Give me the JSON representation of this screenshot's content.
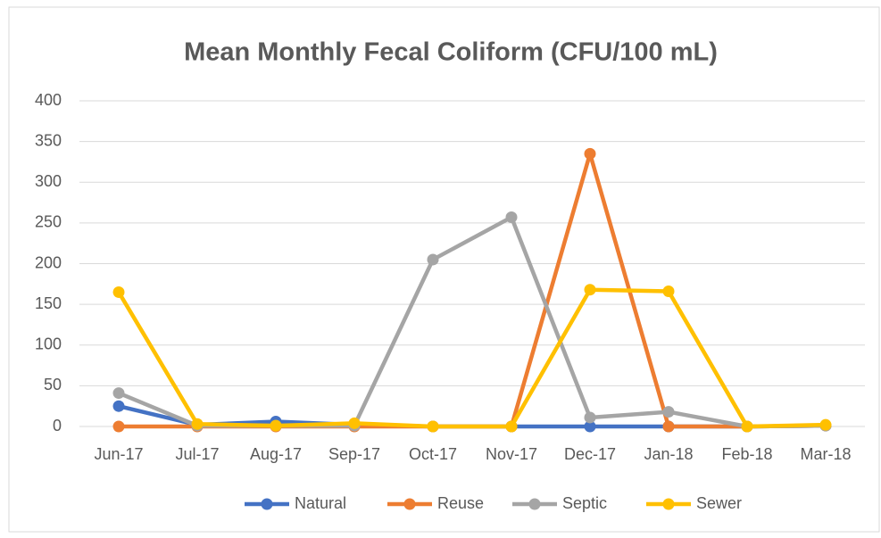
{
  "chart_data": {
    "type": "line",
    "title": "Mean Monthly Fecal Coliform (CFU/100 mL)",
    "categories": [
      "Jun-17",
      "Jul-17",
      "Aug-17",
      "Sep-17",
      "Oct-17",
      "Nov-17",
      "Dec-17",
      "Jan-18",
      "Feb-18",
      "Mar-18"
    ],
    "series": [
      {
        "name": "Natural",
        "color": "#4472c4",
        "values": [
          25,
          2,
          6,
          2,
          0,
          0,
          0,
          0,
          0,
          1
        ]
      },
      {
        "name": "Reuse",
        "color": "#ed7d31",
        "values": [
          0,
          0,
          0,
          0,
          0,
          0,
          335,
          0,
          0,
          1
        ]
      },
      {
        "name": "Septic",
        "color": "#a5a5a5",
        "values": [
          41,
          1,
          1,
          1,
          205,
          257,
          11,
          18,
          0,
          1
        ]
      },
      {
        "name": "Sewer",
        "color": "#ffc000",
        "values": [
          165,
          3,
          1,
          4,
          0,
          0,
          168,
          166,
          0,
          2
        ]
      }
    ],
    "ylim": [
      0,
      400
    ],
    "yticks": [
      0,
      50,
      100,
      150,
      200,
      250,
      300,
      350,
      400
    ],
    "grid": true,
    "legend": "bottom"
  }
}
